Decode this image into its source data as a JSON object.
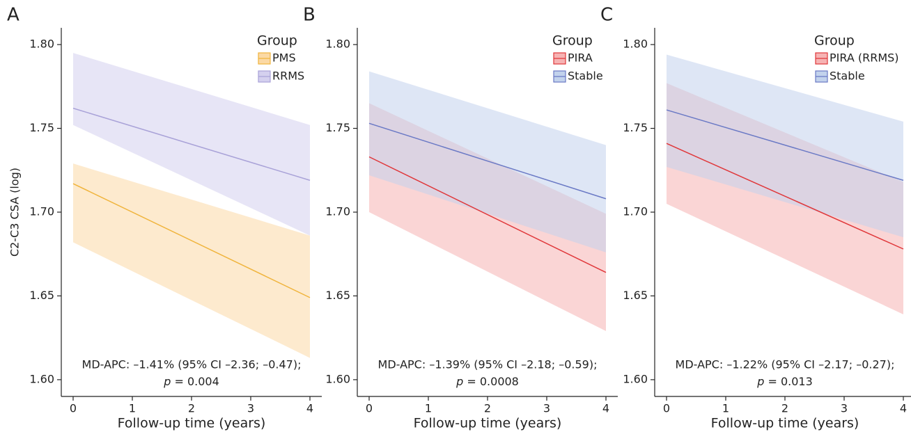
{
  "chart_data": [
    {
      "type": "line",
      "label": "A",
      "x_label": "Follow-up time (years)",
      "y_label": "C2-C3 CSA (log)",
      "legend_title": "Group",
      "annotation": "MD-APC: –1.41% (95% CI –2.36; –0.47);",
      "p_symbol": "p",
      "p_text": "= 0.004",
      "x": [
        0,
        4
      ],
      "xlim": [
        -0.2,
        4.2
      ],
      "ylim": [
        1.59,
        1.81
      ],
      "xticks": [
        0,
        1,
        2,
        3,
        4
      ],
      "yticks": [
        {
          "value": 1.6,
          "label": "1.60"
        },
        1.65,
        {
          "value": 1.7,
          "label": "1.70"
        },
        1.75,
        {
          "value": 1.8,
          "label": "1.80"
        }
      ],
      "series": [
        {
          "name": "PMS",
          "color": "#f0b43c",
          "band_color": "#fbd9a5",
          "values": [
            1.717,
            1.649
          ],
          "lower": [
            1.682,
            1.613
          ],
          "upper": [
            1.729,
            1.686
          ]
        },
        {
          "name": "RRMS",
          "color": "#a9a2d8",
          "band_color": "#d4d0ee",
          "values": [
            1.762,
            1.719
          ],
          "lower": [
            1.752,
            1.686
          ],
          "upper": [
            1.795,
            1.752
          ]
        }
      ]
    },
    {
      "type": "line",
      "label": "B",
      "x_label": "Follow-up time (years)",
      "legend_title": "Group",
      "annotation": "MD-APC: –1.39% (95% CI –2.18; –0.59);",
      "p_symbol": "p",
      "p_text": "= 0.0008",
      "x": [
        0,
        4
      ],
      "xlim": [
        -0.2,
        4.2
      ],
      "ylim": [
        1.59,
        1.81
      ],
      "xticks": [
        0,
        1,
        2,
        3,
        4
      ],
      "yticks": [
        {
          "value": 1.6,
          "label": "1.60"
        },
        1.65,
        {
          "value": 1.7,
          "label": "1.70"
        },
        1.75,
        {
          "value": 1.8,
          "label": "1.80"
        }
      ],
      "series": [
        {
          "name": "PIRA",
          "color": "#e0373a",
          "band_color": "#f6b3b3",
          "values": [
            1.733,
            1.664
          ],
          "lower": [
            1.7,
            1.629
          ],
          "upper": [
            1.765,
            1.699
          ]
        },
        {
          "name": "Stable",
          "color": "#6a79c5",
          "band_color": "#c2d2ec",
          "values": [
            1.753,
            1.708
          ],
          "lower": [
            1.722,
            1.676
          ],
          "upper": [
            1.784,
            1.74
          ]
        }
      ]
    },
    {
      "type": "line",
      "label": "C",
      "x_label": "Follow-up time (years)",
      "legend_title": "Group",
      "annotation": "MD-APC: –1.22% (95% CI –2.17; –0.27);",
      "p_symbol": "p",
      "p_text": "= 0.013",
      "x": [
        0,
        4
      ],
      "xlim": [
        -0.2,
        4.2
      ],
      "ylim": [
        1.59,
        1.81
      ],
      "xticks": [
        0,
        1,
        2,
        3,
        4
      ],
      "yticks": [
        {
          "value": 1.6,
          "label": "1.60"
        },
        1.65,
        {
          "value": 1.7,
          "label": "1.70"
        },
        1.75,
        {
          "value": 1.8,
          "label": "1.80"
        }
      ],
      "series": [
        {
          "name": "PIRA (RRMS)",
          "color": "#e0373a",
          "band_color": "#f6b3b3",
          "values": [
            1.741,
            1.678
          ],
          "lower": [
            1.705,
            1.639
          ],
          "upper": [
            1.777,
            1.718
          ]
        },
        {
          "name": "Stable",
          "color": "#6a79c5",
          "band_color": "#c2d2ec",
          "values": [
            1.761,
            1.719
          ],
          "lower": [
            1.727,
            1.685
          ],
          "upper": [
            1.794,
            1.754
          ]
        }
      ]
    }
  ]
}
